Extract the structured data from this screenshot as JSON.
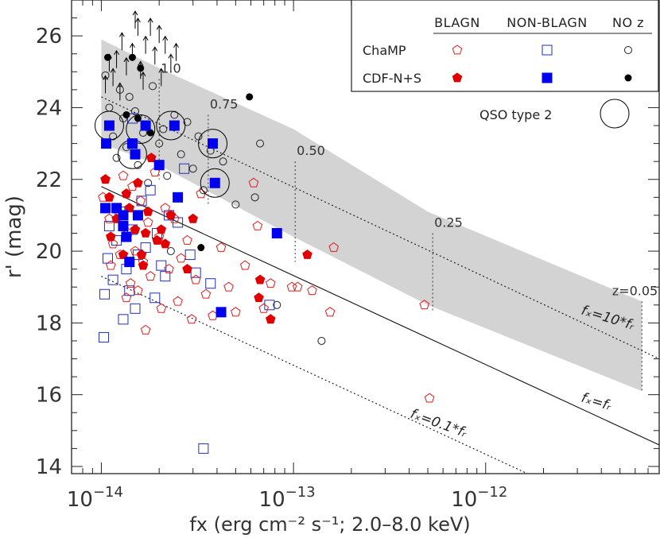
{
  "chart_data": {
    "type": "scatter",
    "xscale": "log",
    "xlim": [
      7e-15,
      8e-12
    ],
    "ylim": [
      13.8,
      27.0
    ],
    "xlabel": "fx (erg cm⁻² s⁻¹; 2.0–8.0 keV)",
    "ylabel": "r' (mag)",
    "x_ticks": [
      {
        "value": 1e-14,
        "base": "10",
        "exp": "−14"
      },
      {
        "value": 1e-13,
        "base": "10",
        "exp": "−13"
      },
      {
        "value": 1e-12,
        "base": "10",
        "exp": "−12"
      }
    ],
    "y_ticks": [
      14,
      16,
      18,
      20,
      22,
      24,
      26
    ],
    "legend": {
      "placement": "top-right",
      "columns": [
        "BLAGN",
        "NON-BLAGN",
        "NO z"
      ],
      "rows": [
        "ChaMP",
        "CDF-N+S"
      ],
      "qso_label": "QSO type 2"
    },
    "relations": [
      {
        "label": "fₓ=10*fᵣ",
        "style": "dotted",
        "points": [
          [
            1e-14,
            24.3
          ],
          [
            8e-12,
            17.0
          ]
        ]
      },
      {
        "label": "fₓ=fᵣ",
        "style": "solid",
        "points": [
          [
            1e-14,
            21.8
          ],
          [
            8e-12,
            14.6
          ]
        ]
      },
      {
        "label": "fₓ=0.1*fᵣ",
        "style": "dotted",
        "points": [
          [
            1e-14,
            19.3
          ],
          [
            8e-12,
            12.1
          ]
        ]
      }
    ],
    "shaded_band": {
      "color": "#d3d3d3",
      "upper": [
        [
          1e-14,
          25.9
        ],
        [
          2e-14,
          25.1
        ],
        [
          1e-13,
          23.4
        ],
        [
          5e-13,
          21.1
        ],
        [
          6.5e-12,
          18.6
        ]
      ],
      "lower": [
        [
          1e-14,
          23.0
        ],
        [
          2e-14,
          22.4
        ],
        [
          1e-13,
          20.4
        ],
        [
          5e-13,
          18.5
        ],
        [
          6.5e-12,
          16.1
        ]
      ]
    },
    "redshift_marks": [
      {
        "label": "1.0",
        "x": 2e-14,
        "y_top": 24.8,
        "y_bottom": 22.0
      },
      {
        "label": "0.75",
        "x": 3.6e-14,
        "y_top": 23.8,
        "y_bottom": 21.3
      },
      {
        "label": "0.50",
        "x": 1.02e-13,
        "y_top": 22.5,
        "y_bottom": 19.7
      },
      {
        "label": "0.25",
        "x": 5.3e-13,
        "y_top": 20.5,
        "y_bottom": 18.3
      },
      {
        "label": "z=0.05",
        "x": 6.5e-12,
        "y_top": 18.6,
        "y_bottom": 16.1
      }
    ],
    "series": [
      {
        "name": "ChaMP BLAGN",
        "marker": "pentagon-open",
        "color": "#e31a1c",
        "points": [
          [
            1.02e-14,
            21.5
          ],
          [
            1.05e-14,
            22.0
          ],
          [
            1.1e-14,
            20.9
          ],
          [
            1.12e-14,
            19.6
          ],
          [
            1.15e-14,
            20.2
          ],
          [
            1.2e-14,
            21.2
          ],
          [
            1.25e-14,
            19.9
          ],
          [
            1.3e-14,
            22.1
          ],
          [
            1.35e-14,
            18.7
          ],
          [
            1.38e-14,
            20.5
          ],
          [
            1.42e-14,
            19.1
          ],
          [
            1.45e-14,
            21.8
          ],
          [
            1.5e-14,
            20.0
          ],
          [
            1.55e-14,
            18.9
          ],
          [
            1.6e-14,
            21.4
          ],
          [
            1.65e-14,
            19.7
          ],
          [
            1.7e-14,
            17.8
          ],
          [
            1.75e-14,
            20.8
          ],
          [
            1.8e-14,
            19.3
          ],
          [
            1.9e-14,
            22.2
          ],
          [
            2e-14,
            20.4
          ],
          [
            2.05e-14,
            18.4
          ],
          [
            2.15e-14,
            21.2
          ],
          [
            2.25e-14,
            19.5
          ],
          [
            2.4e-14,
            20.9
          ],
          [
            2.5e-14,
            18.6
          ],
          [
            2.6e-14,
            19.8
          ],
          [
            2.8e-14,
            20.3
          ],
          [
            2.95e-14,
            18.1
          ],
          [
            3.1e-14,
            19.2
          ],
          [
            3.3e-14,
            21.6
          ],
          [
            3.5e-14,
            18.8
          ],
          [
            3.8e-14,
            18.2
          ],
          [
            4.2e-14,
            20.1
          ],
          [
            4.6e-14,
            19.0
          ],
          [
            5e-14,
            18.3
          ],
          [
            5.6e-14,
            19.6
          ],
          [
            6.2e-14,
            21.9
          ],
          [
            6.5e-14,
            20.7
          ],
          [
            7e-14,
            18.4
          ],
          [
            7.6e-14,
            19.1
          ],
          [
            9.8e-14,
            19.0
          ],
          [
            1.05e-13,
            19.0
          ],
          [
            1.25e-13,
            18.9
          ],
          [
            1.55e-13,
            18.3
          ],
          [
            1.62e-13,
            20.1
          ],
          [
            4.8e-13,
            18.5
          ],
          [
            5.1e-13,
            15.9
          ]
        ]
      },
      {
        "name": "ChaMP NON-BLAGN",
        "marker": "square-open",
        "color": "#1f2fbf",
        "points": [
          [
            1.03e-14,
            17.6
          ],
          [
            1.04e-14,
            18.8
          ],
          [
            1.08e-14,
            19.8
          ],
          [
            1.1e-14,
            20.7
          ],
          [
            1.15e-14,
            19.2
          ],
          [
            1.2e-14,
            20.3
          ],
          [
            1.25e-14,
            21.1
          ],
          [
            1.3e-14,
            18.1
          ],
          [
            1.35e-14,
            19.5
          ],
          [
            1.4e-14,
            18.9
          ],
          [
            1.45e-14,
            20.6
          ],
          [
            1.5e-14,
            18.4
          ],
          [
            1.55e-14,
            19.9
          ],
          [
            1.62e-14,
            21.4
          ],
          [
            1.7e-14,
            20.1
          ],
          [
            1.8e-14,
            21.7
          ],
          [
            1.9e-14,
            18.7
          ],
          [
            1.95e-14,
            20.5
          ],
          [
            2.05e-14,
            19.6
          ],
          [
            2.15e-14,
            19.3
          ],
          [
            2.25e-14,
            21.0
          ],
          [
            2.5e-14,
            20.8
          ],
          [
            2.7e-14,
            22.3
          ],
          [
            2.9e-14,
            19.9
          ],
          [
            3.1e-14,
            19.4
          ],
          [
            3.4e-14,
            14.5
          ],
          [
            3.7e-14,
            19.1
          ],
          [
            1.45e-14,
            23.7
          ],
          [
            7.5e-14,
            18.5
          ]
        ]
      },
      {
        "name": "ChaMP NO z",
        "marker": "circle-open",
        "color": "#222222",
        "points": [
          [
            1.05e-14,
            24.9
          ],
          [
            1.1e-14,
            24.0
          ],
          [
            1.15e-14,
            23.2
          ],
          [
            1.2e-14,
            22.6
          ],
          [
            1.25e-14,
            24.5
          ],
          [
            1.3e-14,
            23.7
          ],
          [
            1.35e-14,
            22.9
          ],
          [
            1.4e-14,
            24.3
          ],
          [
            1.5e-14,
            23.9
          ],
          [
            1.55e-14,
            22.4
          ],
          [
            1.65e-14,
            23.3
          ],
          [
            1.75e-14,
            21.9
          ],
          [
            1.85e-14,
            24.6
          ],
          [
            2e-14,
            23.0
          ],
          [
            2.1e-14,
            23.4
          ],
          [
            2.2e-14,
            22.1
          ],
          [
            2.4e-14,
            23.8
          ],
          [
            2.6e-14,
            22.7
          ],
          [
            2.8e-14,
            23.6
          ],
          [
            3e-14,
            22.3
          ],
          [
            3.2e-14,
            23.2
          ],
          [
            3.4e-14,
            21.7
          ],
          [
            3.7e-14,
            22.8
          ],
          [
            4.3e-14,
            22.5
          ],
          [
            5e-14,
            21.3
          ],
          [
            6.3e-14,
            21.5
          ],
          [
            6.7e-14,
            23.0
          ],
          [
            8.2e-14,
            18.5
          ],
          [
            1.4e-13,
            17.5
          ],
          [
            2.3e-14,
            20.0
          ]
        ]
      },
      {
        "name": "CDF-N+S BLAGN",
        "marker": "pentagon-filled",
        "color": "#e00000",
        "points": [
          [
            1.05e-14,
            22.0
          ],
          [
            1.1e-14,
            21.5
          ],
          [
            1.12e-14,
            20.4
          ],
          [
            1.2e-14,
            20.9
          ],
          [
            1.3e-14,
            19.9
          ],
          [
            1.35e-14,
            21.6
          ],
          [
            1.4e-14,
            21.2
          ],
          [
            1.5e-14,
            20.6
          ],
          [
            1.55e-14,
            21.9
          ],
          [
            1.62e-14,
            19.9
          ],
          [
            1.7e-14,
            20.5
          ],
          [
            1.75e-14,
            21.1
          ],
          [
            1.82e-14,
            22.6
          ],
          [
            1.95e-14,
            20.3
          ],
          [
            2.05e-14,
            20.6
          ],
          [
            2.15e-14,
            20.2
          ],
          [
            2.3e-14,
            21.0
          ],
          [
            2.8e-14,
            19.5
          ],
          [
            3e-14,
            20.9
          ],
          [
            6.6e-14,
            18.7
          ],
          [
            6.7e-14,
            19.2
          ],
          [
            7.6e-14,
            18.1
          ],
          [
            1.18e-13,
            19.9
          ],
          [
            1.65e-14,
            19.6
          ]
        ]
      },
      {
        "name": "CDF-N+S NON-BLAGN",
        "marker": "square-filled",
        "color": "#0000ee",
        "points": [
          [
            1.05e-14,
            21.2
          ],
          [
            1.06e-14,
            23.0
          ],
          [
            1.1e-14,
            23.5
          ],
          [
            1.2e-14,
            21.2
          ],
          [
            1.3e-14,
            21.0
          ],
          [
            1.35e-14,
            20.4
          ],
          [
            1.4e-14,
            19.7
          ],
          [
            1.45e-14,
            23.0
          ],
          [
            1.5e-14,
            22.7
          ],
          [
            1.7e-14,
            23.5
          ],
          [
            2e-14,
            22.4
          ],
          [
            2.4e-14,
            23.5
          ],
          [
            2.5e-14,
            21.5
          ],
          [
            3.8e-14,
            23.0
          ],
          [
            3.9e-14,
            21.9
          ],
          [
            4.2e-14,
            18.3
          ],
          [
            8.2e-14,
            20.5
          ],
          [
            1.55e-14,
            21.0
          ],
          [
            1.3e-14,
            20.7
          ]
        ]
      },
      {
        "name": "CDF-N+S NO z",
        "marker": "circle-filled",
        "color": "#000000",
        "points": [
          [
            1.08e-14,
            25.4
          ],
          [
            1.35e-14,
            23.8
          ],
          [
            1.45e-14,
            25.4
          ],
          [
            1.6e-14,
            25.1
          ],
          [
            1.55e-14,
            23.7
          ],
          [
            1.8e-14,
            23.3
          ],
          [
            3.3e-14,
            20.1
          ],
          [
            5.9e-14,
            24.3
          ]
        ]
      },
      {
        "name": "QSO type 2",
        "marker": "big-circle",
        "color": "#000000",
        "points": [
          [
            1.1e-14,
            23.5
          ],
          [
            1.45e-14,
            22.7
          ],
          [
            1.6e-14,
            23.4
          ],
          [
            2.3e-14,
            23.5
          ],
          [
            3.8e-14,
            23.0
          ],
          [
            3.9e-14,
            21.9
          ]
        ]
      },
      {
        "name": "Upper limits",
        "marker": "up-arrow",
        "color": "#000000",
        "points": [
          [
            1.05e-14,
            24.4
          ],
          [
            1.1e-14,
            25.0
          ],
          [
            1.15e-14,
            24.6
          ],
          [
            1.2e-14,
            25.1
          ],
          [
            1.28e-14,
            25.6
          ],
          [
            1.35e-14,
            24.9
          ],
          [
            1.45e-14,
            25.3
          ],
          [
            1.5e-14,
            26.2
          ],
          [
            1.6e-14,
            24.8
          ],
          [
            1.7e-14,
            25.5
          ],
          [
            1.8e-14,
            26.0
          ],
          [
            1.9e-14,
            25.2
          ],
          [
            2e-14,
            25.8
          ],
          [
            2.05e-14,
            24.6
          ],
          [
            2.15e-14,
            25.5
          ],
          [
            2.3e-14,
            25.0
          ],
          [
            2.45e-14,
            25.3
          ],
          [
            1.55e-14,
            26.0
          ],
          [
            1.25e-14,
            24.2
          ],
          [
            1.65e-14,
            24.5
          ]
        ]
      }
    ]
  }
}
